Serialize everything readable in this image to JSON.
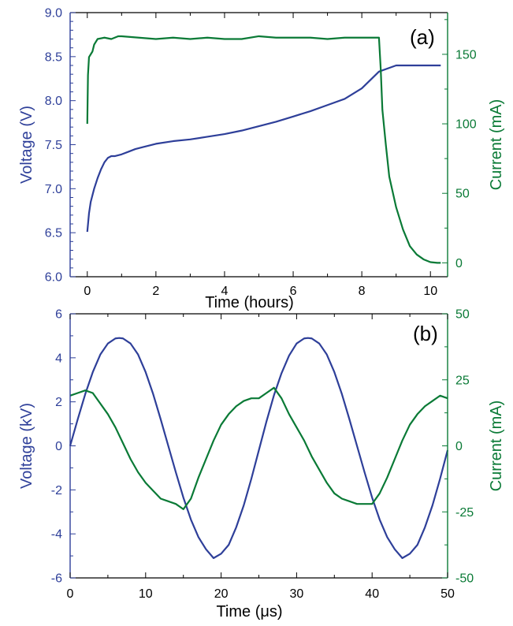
{
  "colors": {
    "voltage": "#2e3f99",
    "current": "#0a7a36",
    "frame": "#000000"
  },
  "chart_data": [
    {
      "type": "line",
      "panel_label": "(a)",
      "xlabel": "Time (hours)",
      "ylabel": "Voltage (V)",
      "y2label": "Current (mA)",
      "xlim": [
        -0.5,
        10.5
      ],
      "ylim": [
        6.0,
        9.0
      ],
      "y2lim": [
        -10,
        180
      ],
      "x_ticks": [
        "0",
        "2",
        "4",
        "6",
        "8",
        "10"
      ],
      "x_tick_values": [
        0,
        2,
        4,
        6,
        8,
        10
      ],
      "y_ticks": [
        "6.0",
        "6.5",
        "7.0",
        "7.5",
        "8.0",
        "8.5",
        "9.0"
      ],
      "y_tick_values": [
        6.0,
        6.5,
        7.0,
        7.5,
        8.0,
        8.5,
        9.0
      ],
      "y2_ticks": [
        "0",
        "50",
        "100",
        "150"
      ],
      "y2_tick_values": [
        0,
        50,
        100,
        150
      ],
      "series": [
        {
          "axis": "left",
          "color": "#2e3f99",
          "x": [
            0.0,
            0.05,
            0.1,
            0.2,
            0.3,
            0.4,
            0.5,
            0.6,
            0.7,
            0.8,
            1.0,
            1.2,
            1.4,
            1.6,
            2.0,
            2.5,
            3.0,
            3.5,
            4.0,
            4.5,
            5.0,
            5.5,
            6.0,
            6.5,
            7.0,
            7.5,
            8.0,
            8.5,
            9.0,
            9.5,
            10.0,
            10.3
          ],
          "y": [
            6.51,
            6.72,
            6.85,
            7.0,
            7.12,
            7.22,
            7.3,
            7.35,
            7.37,
            7.37,
            7.39,
            7.42,
            7.45,
            7.47,
            7.51,
            7.54,
            7.56,
            7.59,
            7.62,
            7.66,
            7.71,
            7.76,
            7.82,
            7.88,
            7.95,
            8.02,
            8.14,
            8.33,
            8.4,
            8.4,
            8.4,
            8.4
          ]
        },
        {
          "axis": "right",
          "color": "#0a7a36",
          "x": [
            0.0,
            0.02,
            0.05,
            0.1,
            0.15,
            0.2,
            0.3,
            0.5,
            0.7,
            0.9,
            1.0,
            1.5,
            2.0,
            2.5,
            3.0,
            3.5,
            4.0,
            4.5,
            5.0,
            5.5,
            6.0,
            6.5,
            7.0,
            7.5,
            8.0,
            8.4,
            8.5,
            8.55,
            8.6,
            8.7,
            8.8,
            9.0,
            9.2,
            9.4,
            9.6,
            9.8,
            10.0,
            10.2,
            10.3
          ],
          "y": [
            100,
            135,
            148,
            150,
            152,
            157,
            161,
            162,
            161,
            163,
            163,
            162,
            161,
            162,
            161,
            162,
            161,
            161,
            163,
            162,
            162,
            162,
            161,
            162,
            162,
            162,
            162,
            140,
            110,
            85,
            62,
            40,
            24,
            12,
            6,
            2.5,
            0.5,
            0,
            0
          ]
        }
      ]
    },
    {
      "type": "line",
      "panel_label": "(b)",
      "xlabel": "Time (μs)",
      "ylabel": "Voltage (kV)",
      "y2label": "Current (mA)",
      "xlim": [
        0,
        50
      ],
      "ylim": [
        -6,
        6
      ],
      "y2lim": [
        -50,
        50
      ],
      "x_ticks": [
        "0",
        "10",
        "20",
        "30",
        "40",
        "50"
      ],
      "x_tick_values": [
        0,
        10,
        20,
        30,
        40,
        50
      ],
      "y_ticks": [
        "-6",
        "-4",
        "-2",
        "0",
        "2",
        "4",
        "6"
      ],
      "y_tick_values": [
        -6,
        -4,
        -2,
        0,
        2,
        4,
        6
      ],
      "y2_ticks": [
        "-50",
        "-25",
        "0",
        "25",
        "50"
      ],
      "y2_tick_values": [
        -50,
        -25,
        0,
        25,
        50
      ],
      "series": [
        {
          "axis": "left",
          "color": "#2e3f99",
          "x": [
            0,
            1,
            2,
            3,
            4,
            5,
            6,
            6.5,
            7,
            8,
            9,
            10,
            11,
            12,
            13,
            14,
            15,
            16,
            17,
            18,
            19,
            20,
            21,
            22,
            23,
            24,
            25,
            26,
            27,
            28,
            29,
            30,
            31,
            31.5,
            32,
            33,
            34,
            35,
            36,
            37,
            38,
            39,
            40,
            41,
            42,
            43,
            44,
            45,
            46,
            47,
            48,
            49,
            50
          ],
          "y": [
            0,
            1.2,
            2.35,
            3.35,
            4.15,
            4.65,
            4.88,
            4.9,
            4.88,
            4.65,
            4.15,
            3.35,
            2.35,
            1.2,
            0,
            -1.2,
            -2.35,
            -3.35,
            -4.15,
            -4.7,
            -5.1,
            -4.9,
            -4.5,
            -3.7,
            -2.7,
            -1.5,
            -0.2,
            1.1,
            2.3,
            3.3,
            4.1,
            4.65,
            4.88,
            4.9,
            4.88,
            4.65,
            4.15,
            3.35,
            2.35,
            1.2,
            0,
            -1.2,
            -2.35,
            -3.35,
            -4.15,
            -4.7,
            -5.1,
            -4.9,
            -4.5,
            -3.7,
            -2.7,
            -1.5,
            -0.2
          ]
        },
        {
          "axis": "right",
          "color": "#0a7a36",
          "x": [
            0,
            1,
            2,
            3,
            4,
            5,
            6,
            7,
            8,
            9,
            10,
            11,
            12,
            13,
            14,
            15,
            16,
            17,
            18,
            19,
            20,
            21,
            22,
            23,
            24,
            25,
            26,
            27,
            28,
            29,
            30,
            31,
            32,
            33,
            34,
            35,
            36,
            37,
            38,
            39,
            40,
            41,
            42,
            43,
            44,
            45,
            46,
            47,
            48,
            49,
            50
          ],
          "y": [
            19,
            20,
            21,
            20,
            16,
            12,
            7,
            1,
            -5,
            -10,
            -14,
            -17,
            -20,
            -21,
            -22,
            -24,
            -20,
            -12,
            -5,
            2,
            8,
            12,
            15,
            17,
            18,
            18,
            20,
            22,
            18,
            12,
            7,
            2,
            -4,
            -9,
            -14,
            -18,
            -20,
            -21,
            -22,
            -22,
            -22,
            -18,
            -12,
            -5,
            2,
            8,
            12,
            15,
            17,
            19,
            18
          ]
        }
      ]
    }
  ]
}
